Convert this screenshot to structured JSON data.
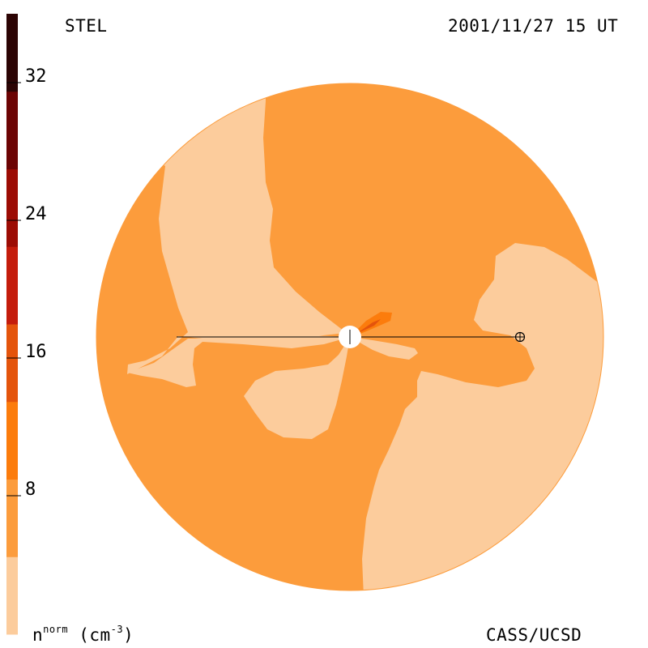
{
  "header": {
    "observatory": "STEL",
    "timestamp": "2001/11/27 15 UT"
  },
  "footer": {
    "credit": "CASS/UCSD",
    "unit_base": "n",
    "unit_sup": "norm",
    "unit_tail": " (cm",
    "unit_exp": "-3",
    "unit_close": ")"
  },
  "colorbar": {
    "tick_labels": [
      "8",
      "16",
      "24",
      "32"
    ],
    "bands": [
      "#fccc9c",
      "#fc9c3c",
      "#fc7c0c",
      "#e4540c",
      "#c41c0c",
      "#9c0c04",
      "#6c0404",
      "#2c0404"
    ]
  },
  "colors": {
    "low_density": "#fccc9c",
    "mid_density": "#fc9c3c",
    "high_density": "#fc7c0c",
    "peak_density": "#e4540c"
  },
  "symbols": {
    "sun": "sun-icon",
    "earth": "earth-icon"
  }
}
